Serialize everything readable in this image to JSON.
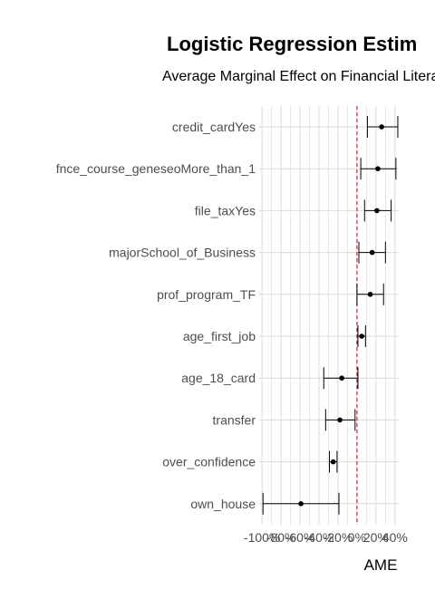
{
  "chart_data": {
    "type": "scatter",
    "title": "Logistic Regression Estim",
    "subtitle": "Average Marginal Effect on Financial Litera",
    "xlabel": "AME",
    "ylabel": "",
    "xlim": [
      -1.03,
      0.44
    ],
    "x_ticks": [
      -1.0,
      -0.8,
      -0.6,
      -0.4,
      -0.2,
      0.0,
      0.2,
      0.4
    ],
    "x_tick_labels": [
      "-100%",
      "-80%",
      "-60%",
      "-40%",
      "-20%",
      "0%",
      "20%",
      "40%"
    ],
    "reference_line": {
      "x": 0.0,
      "style": "dashed",
      "color": "#e41a1c"
    },
    "grid": true,
    "categories": [
      "credit_cardYes",
      "fnce_course_geneseoMore_than_1",
      "file_taxYes",
      "majorSchool_of_Business",
      "prof_program_TF",
      "age_first_job",
      "age_18_card",
      "transfer",
      "over_confidence",
      "own_house"
    ],
    "estimates": [
      0.26,
      0.22,
      0.21,
      0.16,
      0.14,
      0.05,
      -0.16,
      -0.18,
      -0.25,
      -0.59
    ],
    "lower": [
      0.11,
      0.04,
      0.08,
      0.02,
      0.0,
      0.01,
      -0.35,
      -0.33,
      -0.29,
      -0.99
    ],
    "upper": [
      0.43,
      0.41,
      0.36,
      0.3,
      0.28,
      0.09,
      0.01,
      -0.02,
      -0.21,
      -0.19
    ]
  },
  "colors": {
    "point": "#000000",
    "errorbar": "#000000",
    "grid": "#d9d9d9",
    "reference": "#e41a1c"
  }
}
